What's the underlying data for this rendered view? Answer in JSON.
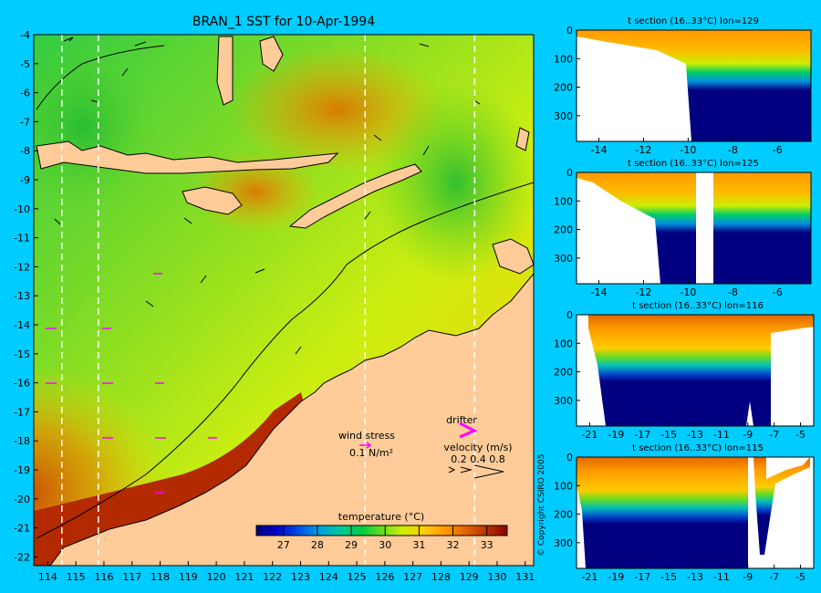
{
  "background": "#00ccff",
  "colors": {
    "land": "#ffcc99",
    "coast": "#000000",
    "missing": "#ffffff",
    "drifter": "#ff00ff"
  },
  "main_map": {
    "title": "BRAN_1 SST for 10-Apr-1994",
    "x_ticks": [
      "114",
      "115",
      "116",
      "117",
      "118",
      "119",
      "120",
      "121",
      "122",
      "123",
      "124",
      "125",
      "126",
      "127",
      "128",
      "129",
      "130",
      "131"
    ],
    "y_ticks": [
      "-4",
      "-5",
      "-6",
      "-7",
      "-8",
      "-9",
      "-10",
      "-11",
      "-12",
      "-13",
      "-14",
      "-15",
      "-16",
      "-17",
      "-18",
      "-19",
      "-20",
      "-21",
      "-22"
    ],
    "section_lines_lon": [
      114.5,
      115.8,
      125.3,
      129.2
    ]
  },
  "legend": {
    "wind_stress_label": "wind stress",
    "wind_stress_value": "0.1 N/m²",
    "drifter_label": "drifter",
    "velocity_label": "velocity (m/s)",
    "velocity_values": "0.2 0.4 0.8"
  },
  "colorbar": {
    "title": "temperature (°C)",
    "ticks": [
      "27",
      "28",
      "29",
      "30",
      "31",
      "32",
      "33"
    ],
    "range": [
      26.2,
      33.6
    ],
    "colors": [
      "#000080",
      "#0000cc",
      "#0050e6",
      "#00a0e0",
      "#00c8a0",
      "#00cc44",
      "#66dd22",
      "#ccee00",
      "#ffcc00",
      "#ff9900",
      "#e66600",
      "#b33300",
      "#8b0000"
    ]
  },
  "copyright": "© Copyright CSIRO 2005",
  "chart_data": [
    {
      "type": "heatmap",
      "title": "BRAN_1 SST for 10-Apr-1994",
      "xlabel": "",
      "ylabel": "",
      "xlim": [
        113.5,
        131.3
      ],
      "ylim": [
        -22.3,
        -4
      ],
      "colorbar_label": "temperature (°C)",
      "colorbar_range": [
        26.2,
        33.6
      ]
    },
    {
      "type": "heatmap",
      "title": "t section (16..33°C) lon=129",
      "xlim": [
        -15,
        -4.5
      ],
      "ylim": [
        390,
        0
      ],
      "x_ticks": [
        "-14",
        "-12",
        "-10",
        "-8",
        "-6"
      ],
      "y_ticks": [
        "0",
        "100",
        "200",
        "300"
      ]
    },
    {
      "type": "heatmap",
      "title": "t section (16..33°C) lon=125",
      "xlim": [
        -15,
        -4.5
      ],
      "ylim": [
        390,
        0
      ],
      "x_ticks": [
        "-14",
        "-12",
        "-10",
        "-8",
        "-6"
      ],
      "y_ticks": [
        "0",
        "100",
        "200",
        "300"
      ]
    },
    {
      "type": "heatmap",
      "title": "t section (16..33°C) lon=116",
      "xlim": [
        -22,
        -4
      ],
      "ylim": [
        390,
        0
      ],
      "x_ticks": [
        "-21",
        "-19",
        "-17",
        "-15",
        "-13",
        "-11",
        "-9",
        "-7",
        "-5"
      ],
      "y_ticks": [
        "0",
        "100",
        "200",
        "300"
      ]
    },
    {
      "type": "heatmap",
      "title": "t section (16..33°C) lon=115",
      "xlim": [
        -22,
        -4
      ],
      "ylim": [
        390,
        0
      ],
      "x_ticks": [
        "-21",
        "-19",
        "-17",
        "-15",
        "-13",
        "-11",
        "-9",
        "-7",
        "-5"
      ],
      "y_ticks": [
        "0",
        "100",
        "200",
        "300"
      ]
    }
  ]
}
